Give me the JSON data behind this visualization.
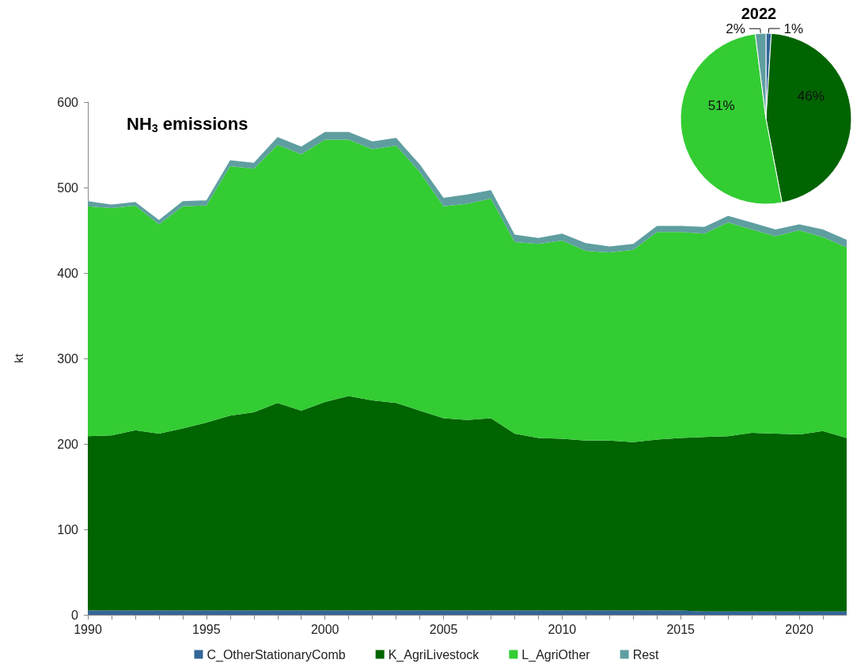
{
  "chart_data": [
    {
      "type": "area",
      "title": "NH$_{3}$ emissions",
      "ylabel": "kt",
      "stacked": true,
      "legend": "bottom",
      "grid": false,
      "x": [
        1990,
        1991,
        1992,
        1993,
        1994,
        1995,
        1996,
        1997,
        1998,
        1999,
        2000,
        2001,
        2002,
        2003,
        2004,
        2005,
        2006,
        2007,
        2008,
        2009,
        2010,
        2011,
        2012,
        2013,
        2014,
        2015,
        2016,
        2017,
        2018,
        2019,
        2020,
        2021,
        2022
      ],
      "xlim": [
        1990,
        2022
      ],
      "xticks": [
        1990,
        {
          "value": 1991,
          "label": null
        },
        {
          "value": 1992,
          "label": null
        },
        {
          "value": 1993,
          "label": null
        },
        {
          "value": 1994,
          "label": null
        },
        1995,
        {
          "value": 1996,
          "label": null
        },
        {
          "value": 1997,
          "label": null
        },
        {
          "value": 1998,
          "label": null
        },
        {
          "value": 1999,
          "label": null
        },
        2000,
        {
          "value": 2001,
          "label": null
        },
        {
          "value": 2002,
          "label": null
        },
        {
          "value": 2003,
          "label": null
        },
        {
          "value": 2004,
          "label": null
        },
        2005,
        {
          "value": 2006,
          "label": null
        },
        {
          "value": 2007,
          "label": null
        },
        {
          "value": 2008,
          "label": null
        },
        {
          "value": 2009,
          "label": null
        },
        2010,
        {
          "value": 2011,
          "label": null
        },
        {
          "value": 2012,
          "label": null
        },
        {
          "value": 2013,
          "label": null
        },
        {
          "value": 2014,
          "label": null
        },
        2015,
        {
          "value": 2016,
          "label": null
        },
        {
          "value": 2017,
          "label": null
        },
        {
          "value": 2018,
          "label": null
        },
        {
          "value": 2019,
          "label": null
        },
        2020,
        {
          "value": 2021,
          "label": null
        },
        {
          "value": 2022,
          "label": null
        }
      ],
      "ylim": [
        0,
        600
      ],
      "yticks": [
        0,
        100,
        200,
        300,
        400,
        500,
        600
      ],
      "series": [
        {
          "name": "C_OtherStationaryComb",
          "color": "#336699",
          "values": [
            5,
            5,
            5,
            5,
            5,
            5,
            5,
            5,
            5,
            5,
            5,
            5,
            5,
            5,
            5,
            5,
            5,
            5,
            5,
            5,
            5,
            5,
            5,
            5,
            5,
            5,
            4,
            4,
            4,
            4,
            4,
            4,
            4
          ]
        },
        {
          "name": "K_AgriLivestock",
          "color": "#006400",
          "values": [
            204,
            205,
            211,
            207,
            213,
            220,
            228,
            232,
            243,
            234,
            244,
            251,
            246,
            243,
            234,
            225,
            223,
            225,
            207,
            202,
            201,
            199,
            199,
            197,
            200,
            202,
            204,
            205,
            209,
            208,
            207,
            211,
            203
          ]
        },
        {
          "name": "L_AgriOther",
          "color": "#33cc33",
          "values": [
            269,
            266,
            263,
            245,
            260,
            254,
            292,
            285,
            302,
            300,
            307,
            300,
            294,
            301,
            279,
            248,
            253,
            257,
            224,
            227,
            232,
            222,
            220,
            225,
            243,
            241,
            238,
            250,
            238,
            231,
            239,
            227,
            223
          ]
        },
        {
          "name": "Rest",
          "color": "#5f9ea0",
          "values": [
            6,
            4,
            4,
            5,
            6,
            6,
            7,
            7,
            9,
            9,
            9,
            9,
            9,
            9,
            9,
            10,
            11,
            10,
            9,
            7,
            8,
            9,
            7,
            7,
            7,
            7,
            8,
            8,
            8,
            8,
            7,
            9,
            9
          ]
        }
      ]
    },
    {
      "type": "pie",
      "title": "2022",
      "values": [
        1,
        46,
        51,
        2
      ],
      "colors": [
        "#336699",
        "#006400",
        "#33cc33",
        "#5f9ea0"
      ],
      "value_labels": [
        "1%",
        "46%",
        "51%",
        "2%"
      ]
    }
  ]
}
